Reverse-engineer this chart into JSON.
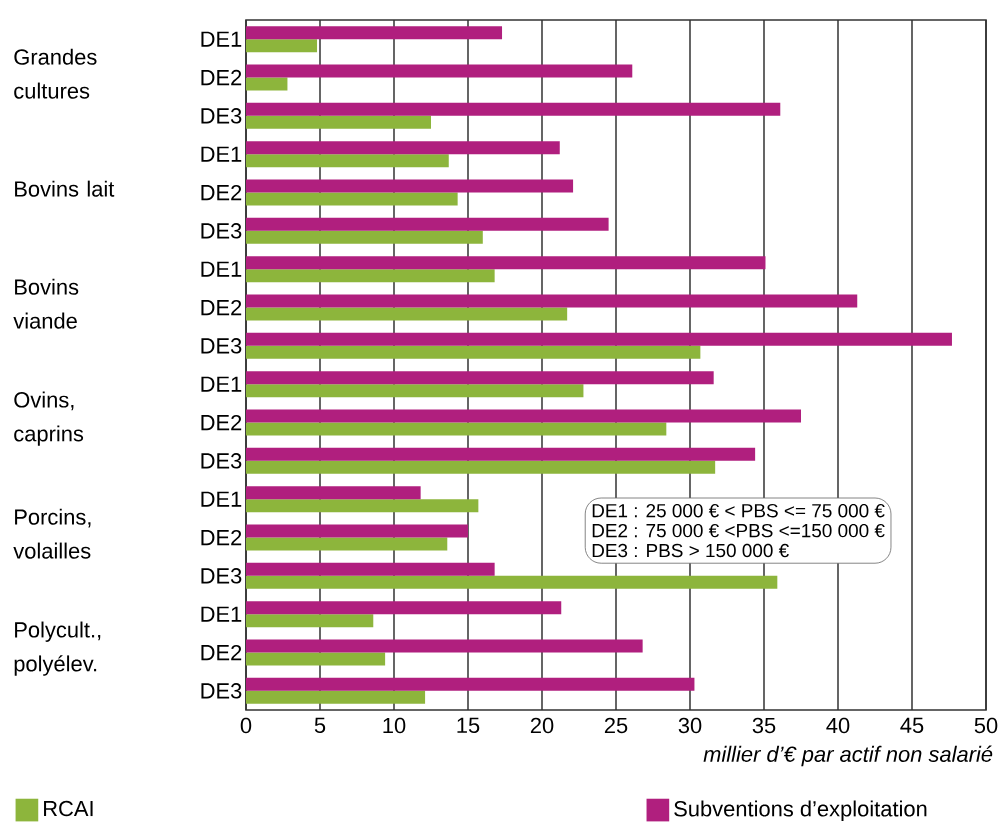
{
  "chart_data": {
    "type": "bar",
    "orientation": "horizontal",
    "categories": [
      "DE1",
      "DE2",
      "DE3",
      "DE1",
      "DE2",
      "DE3",
      "DE1",
      "DE2",
      "DE3",
      "DE1",
      "DE2",
      "DE3",
      "DE1",
      "DE2",
      "DE3",
      "DE1",
      "DE2",
      "DE3"
    ],
    "series": [
      {
        "name": "RCAI",
        "color": "#8db53c",
        "values": [
          4.8,
          2.8,
          12.5,
          13.7,
          14.3,
          16.0,
          16.8,
          21.7,
          30.7,
          22.8,
          28.4,
          31.7,
          15.7,
          13.6,
          35.9,
          8.6,
          9.4,
          12.1
        ]
      },
      {
        "name": "Subventions d’exploitation",
        "color": "#b01f7e",
        "values": [
          17.3,
          26.1,
          36.1,
          21.2,
          22.1,
          24.5,
          35.1,
          41.3,
          47.7,
          31.6,
          37.5,
          34.4,
          11.8,
          15.0,
          16.8,
          21.3,
          26.8,
          30.3
        ]
      }
    ],
    "xlabel": "millier d’€ par actif non salarié",
    "xlim": [
      0,
      50
    ],
    "xticks": [
      0,
      5,
      10,
      15,
      20,
      25,
      30,
      35,
      40,
      45,
      50
    ],
    "grid": "x",
    "legend": "bottom",
    "annotations": [
      "Grandes cultures",
      "Bovins lait",
      "Bovins viande",
      "Ovins, caprins",
      "Porcins, volailles",
      "Polycult., polyélev.",
      "DE1 : 25 000 € < PBS <= 75 000 €",
      "DE2 : 75 000 € <PBS <=150 000 €",
      "DE3 : PBS > 150 000 €"
    ]
  }
}
